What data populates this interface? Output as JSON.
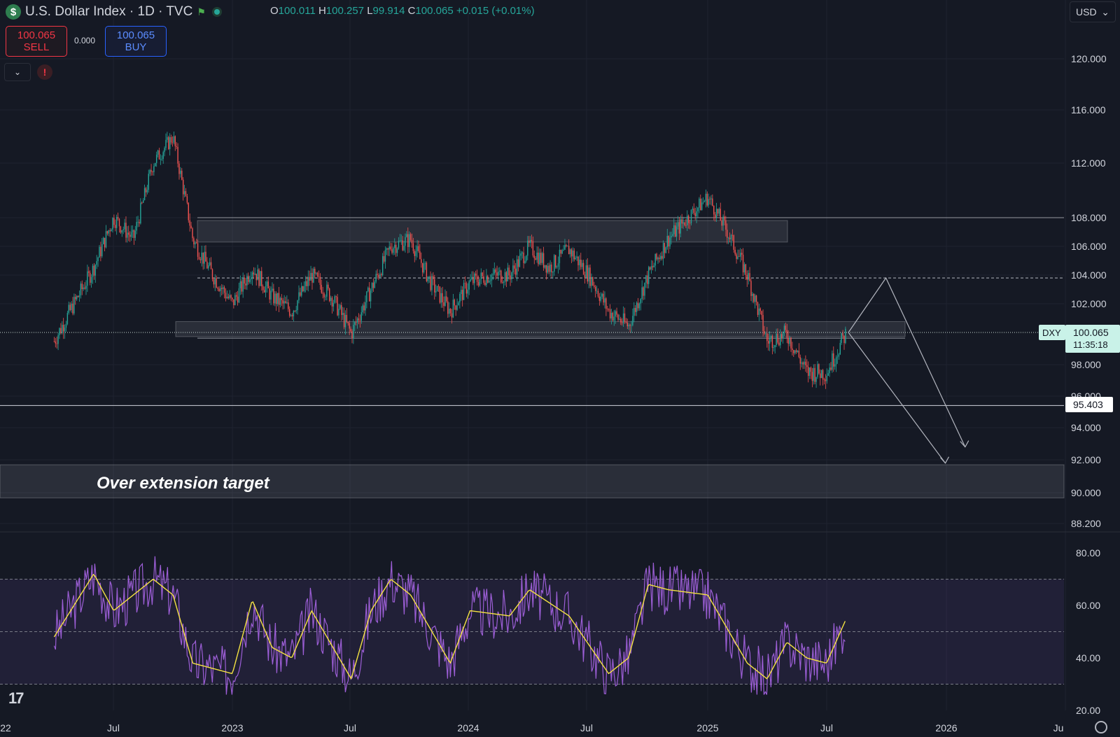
{
  "header": {
    "symbol_icon": "$",
    "title": "U.S. Dollar Index · 1D · TVC",
    "flag_icon": "flag-icon",
    "status_icon": "market-open-dot-icon",
    "ohlc": {
      "o_label": "O",
      "o": "100.011",
      "h_label": "H",
      "h": "100.257",
      "l_label": "L",
      "l": "99.914",
      "c_label": "C",
      "c": "100.065",
      "change": "+0.015 (+0.01%)"
    }
  },
  "trade": {
    "sell_price": "100.065",
    "sell_label": "SELL",
    "spread": "0.000",
    "buy_price": "100.065",
    "buy_label": "BUY"
  },
  "currency": "USD",
  "colors": {
    "background": "#151924",
    "up": "#26a69a",
    "down": "#ef5350",
    "rsi": "#9c5ed6",
    "rsi_ma": "#f5e342",
    "sell": "#f23645",
    "buy": "#2962ff"
  },
  "annotation": "Over extension target",
  "price_axis": [
    "120.000",
    "116.000",
    "112.000",
    "108.000",
    "106.000",
    "104.000",
    "102.000",
    "98.000",
    "96.000",
    "94.000",
    "92.000",
    "90.000",
    "88.200"
  ],
  "rsi_axis": [
    "80.00",
    "60.00",
    "40.00",
    "20.00"
  ],
  "time_axis": [
    "22",
    "Jul",
    "2023",
    "Jul",
    "2024",
    "Jul",
    "2025",
    "Jul",
    "2026",
    "Ju"
  ],
  "last_price": {
    "symbol": "DXY",
    "price": "100.065",
    "countdown": "11:35:18"
  },
  "level_label": "95.403",
  "chart_data": {
    "type": "candlestick",
    "title": "U.S. Dollar Index · 1D · TVC",
    "ylim": [
      88.2,
      122
    ],
    "x_range": [
      "2022-04",
      "2026-07"
    ],
    "price_path": [
      [
        "2022-04",
        99.5
      ],
      [
        "2022-05",
        102
      ],
      [
        "2022-06",
        104.5
      ],
      [
        "2022-07",
        108
      ],
      [
        "2022-08",
        106.5
      ],
      [
        "2022-09",
        112
      ],
      [
        "2022-10",
        114
      ],
      [
        "2022-11",
        106.5
      ],
      [
        "2022-12",
        104
      ],
      [
        "2023-01",
        102
      ],
      [
        "2023-02",
        104.5
      ],
      [
        "2023-03",
        102.5
      ],
      [
        "2023-04",
        101.5
      ],
      [
        "2023-05",
        104
      ],
      [
        "2023-06",
        102.5
      ],
      [
        "2023-07",
        100
      ],
      [
        "2023-08",
        103
      ],
      [
        "2023-09",
        106
      ],
      [
        "2023-10",
        106.5
      ],
      [
        "2023-11",
        103.5
      ],
      [
        "2023-12",
        101.5
      ],
      [
        "2024-01",
        103.5
      ],
      [
        "2024-02",
        104
      ],
      [
        "2024-03",
        104
      ],
      [
        "2024-04",
        106
      ],
      [
        "2024-05",
        104.5
      ],
      [
        "2024-06",
        105.8
      ],
      [
        "2024-07",
        104
      ],
      [
        "2024-08",
        101.5
      ],
      [
        "2024-09",
        100.5
      ],
      [
        "2024-10",
        104
      ],
      [
        "2024-11",
        106.5
      ],
      [
        "2024-12",
        108
      ],
      [
        "2025-01",
        109.5
      ],
      [
        "2025-02",
        107
      ],
      [
        "2025-03",
        104
      ],
      [
        "2025-04",
        99.5
      ],
      [
        "2025-05",
        100
      ],
      [
        "2025-06",
        97.5
      ],
      [
        "2025-07",
        97.5
      ],
      [
        "2025-08",
        100.065
      ]
    ],
    "zones": [
      {
        "from": 106.3,
        "to": 107.8
      },
      {
        "from": 99.8,
        "to": 100.8
      },
      {
        "from": 89.7,
        "to": 91.7,
        "label": "Over extension target"
      }
    ],
    "levels": [
      108.0,
      103.8,
      95.403
    ],
    "projection": [
      [
        "2025-08",
        100.065
      ],
      [
        "2025-10",
        103.8
      ],
      [
        "2026-02",
        92.8
      ]
    ],
    "rsi": {
      "length": 14,
      "bands": [
        30,
        70
      ],
      "path": [
        [
          "2022-04",
          48
        ],
        [
          "2022-06",
          72
        ],
        [
          "2022-07",
          58
        ],
        [
          "2022-09",
          70
        ],
        [
          "2022-10",
          64
        ],
        [
          "2022-11",
          38
        ],
        [
          "2022-12",
          36
        ],
        [
          "2023-01",
          34
        ],
        [
          "2023-02",
          62
        ],
        [
          "2023-03",
          44
        ],
        [
          "2023-04",
          40
        ],
        [
          "2023-05",
          58
        ],
        [
          "2023-07",
          32
        ],
        [
          "2023-08",
          58
        ],
        [
          "2023-09",
          70
        ],
        [
          "2023-10",
          64
        ],
        [
          "2023-12",
          38
        ],
        [
          "2024-01",
          58
        ],
        [
          "2024-03",
          56
        ],
        [
          "2024-04",
          66
        ],
        [
          "2024-06",
          56
        ],
        [
          "2024-08",
          34
        ],
        [
          "2024-09",
          40
        ],
        [
          "2024-10",
          68
        ],
        [
          "2024-11",
          66
        ],
        [
          "2025-01",
          64
        ],
        [
          "2025-03",
          38
        ],
        [
          "2025-04",
          32
        ],
        [
          "2025-05",
          46
        ],
        [
          "2025-06",
          40
        ],
        [
          "2025-07",
          38
        ],
        [
          "2025-08",
          55
        ]
      ]
    }
  }
}
